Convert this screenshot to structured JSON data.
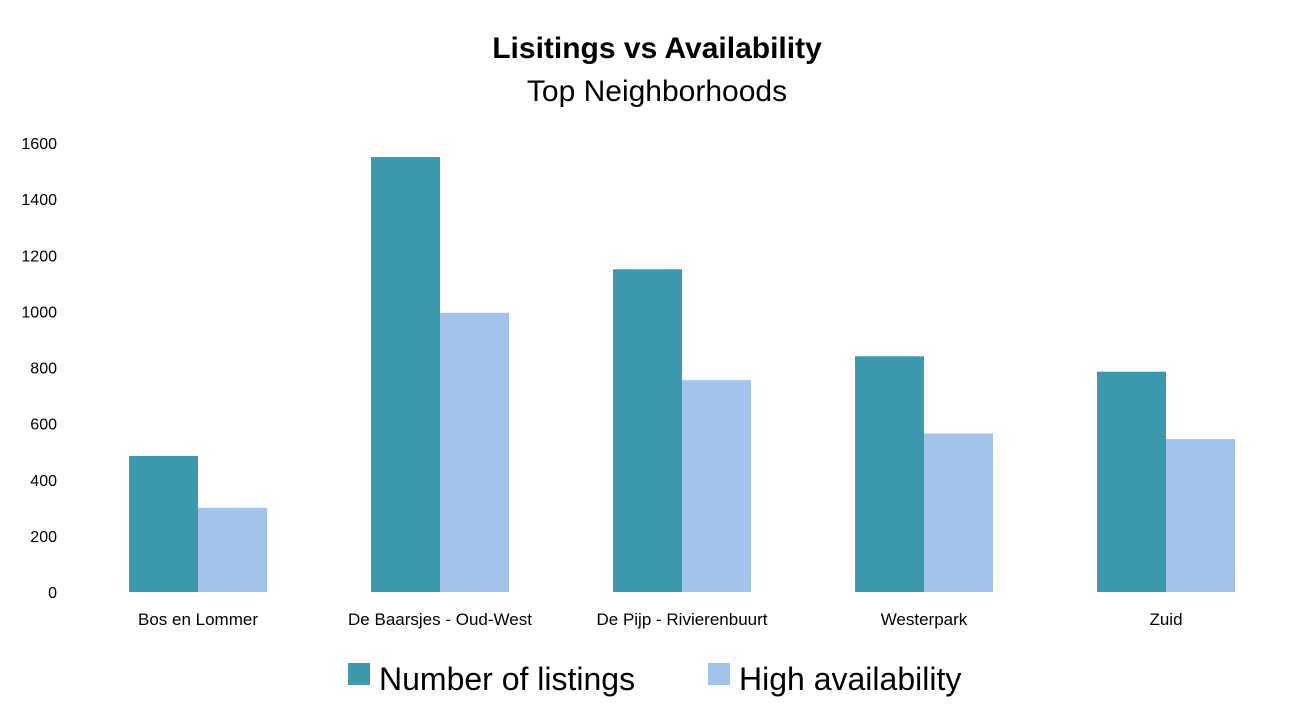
{
  "chart_data": {
    "type": "bar",
    "title": "Lisitings vs Availability",
    "subtitle": "Top Neighborhoods",
    "categories": [
      "Bos en Lommer",
      "De Baarsjes - Oud-West",
      "De Pijp - Rivierenbuurt",
      "Westerpark",
      "Zuid"
    ],
    "series": [
      {
        "name": "Number of listings",
        "color": "#3c99ad",
        "values": [
          485,
          1550,
          1150,
          840,
          785
        ]
      },
      {
        "name": "High availability",
        "color": "#a2c3ea",
        "values": [
          300,
          995,
          755,
          565,
          545
        ]
      }
    ],
    "ylim": [
      0,
      1600
    ],
    "yticks": [
      0,
      200,
      400,
      600,
      800,
      1000,
      1200,
      1400,
      1600
    ],
    "grid": false,
    "legend_position": "bottom"
  }
}
